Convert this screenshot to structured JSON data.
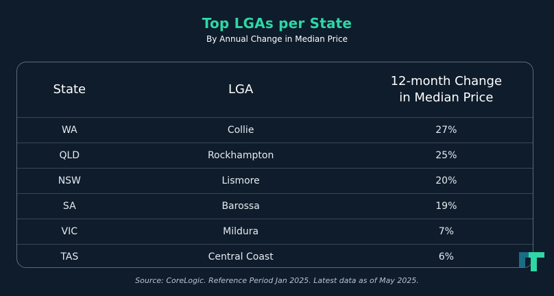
{
  "title": "Top LGAs per State",
  "subtitle": "By Annual Change in Median Price",
  "table": {
    "headers": {
      "state": "State",
      "lga": "LGA",
      "change_line1": "12-month Change",
      "change_line2": "in Median Price"
    },
    "rows": [
      {
        "state": "WA",
        "lga": "Collie",
        "change": "27%"
      },
      {
        "state": "QLD",
        "lga": "Rockhampton",
        "change": "25%"
      },
      {
        "state": "NSW",
        "lga": "Lismore",
        "change": "20%"
      },
      {
        "state": "SA",
        "lga": "Barossa",
        "change": "19%"
      },
      {
        "state": "VIC",
        "lga": "Mildura",
        "change": "7%"
      },
      {
        "state": "TAS",
        "lga": "Central Coast",
        "change": "6%"
      }
    ]
  },
  "source": "Source: CoreLogic. Reference Period Jan 2025. Latest data as of May 2025.",
  "colors": {
    "background": "#0e1c2b",
    "title": "#2fd6a6",
    "border": "#5d6b79",
    "logo_dark": "#1b6d86",
    "logo_light": "#2fd6a6"
  },
  "chart_data": {
    "type": "table",
    "title": "Top LGAs per State",
    "subtitle": "By Annual Change in Median Price",
    "columns": [
      "State",
      "LGA",
      "12-month Change in Median Price"
    ],
    "rows": [
      [
        "WA",
        "Collie",
        "27%"
      ],
      [
        "QLD",
        "Rockhampton",
        "25%"
      ],
      [
        "NSW",
        "Lismore",
        "20%"
      ],
      [
        "SA",
        "Barossa",
        "19%"
      ],
      [
        "VIC",
        "Mildura",
        "7%"
      ],
      [
        "TAS",
        "Central Coast",
        "6%"
      ]
    ],
    "values": [
      27,
      25,
      20,
      19,
      7,
      6
    ],
    "unit": "%"
  }
}
